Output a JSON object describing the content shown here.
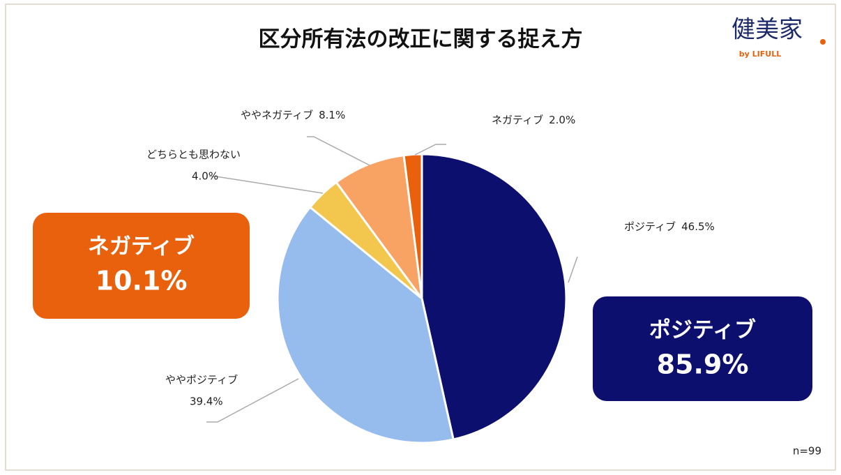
{
  "chart_data": {
    "type": "pie",
    "title": "区分所有法の改正に関する捉え方",
    "categories": [
      "ポジティブ",
      "ややポジティブ",
      "どちらとも思わない",
      "ややネガティブ",
      "ネガティブ"
    ],
    "values": [
      46.5,
      39.4,
      4.0,
      8.1,
      2.0
    ],
    "value_labels": [
      "46.5%",
      "39.4%",
      "4.0%",
      "8.1%",
      "2.0%"
    ],
    "colors": [
      "#0d0f6e",
      "#96bbed",
      "#f3c74e",
      "#f8a263",
      "#e9610c"
    ],
    "summaries": [
      {
        "name": "ネガティブ",
        "total": {
          "value": 10.1,
          "label": "10.1%"
        },
        "color": "#e9610c"
      },
      {
        "name": "ポジティブ",
        "total": {
          "value": 85.9,
          "label": "85.9%"
        },
        "color": "#0d0f6e"
      }
    ],
    "note": "n=99",
    "logo": {
      "main": "健美家",
      "sub": "by LIFULL"
    }
  }
}
